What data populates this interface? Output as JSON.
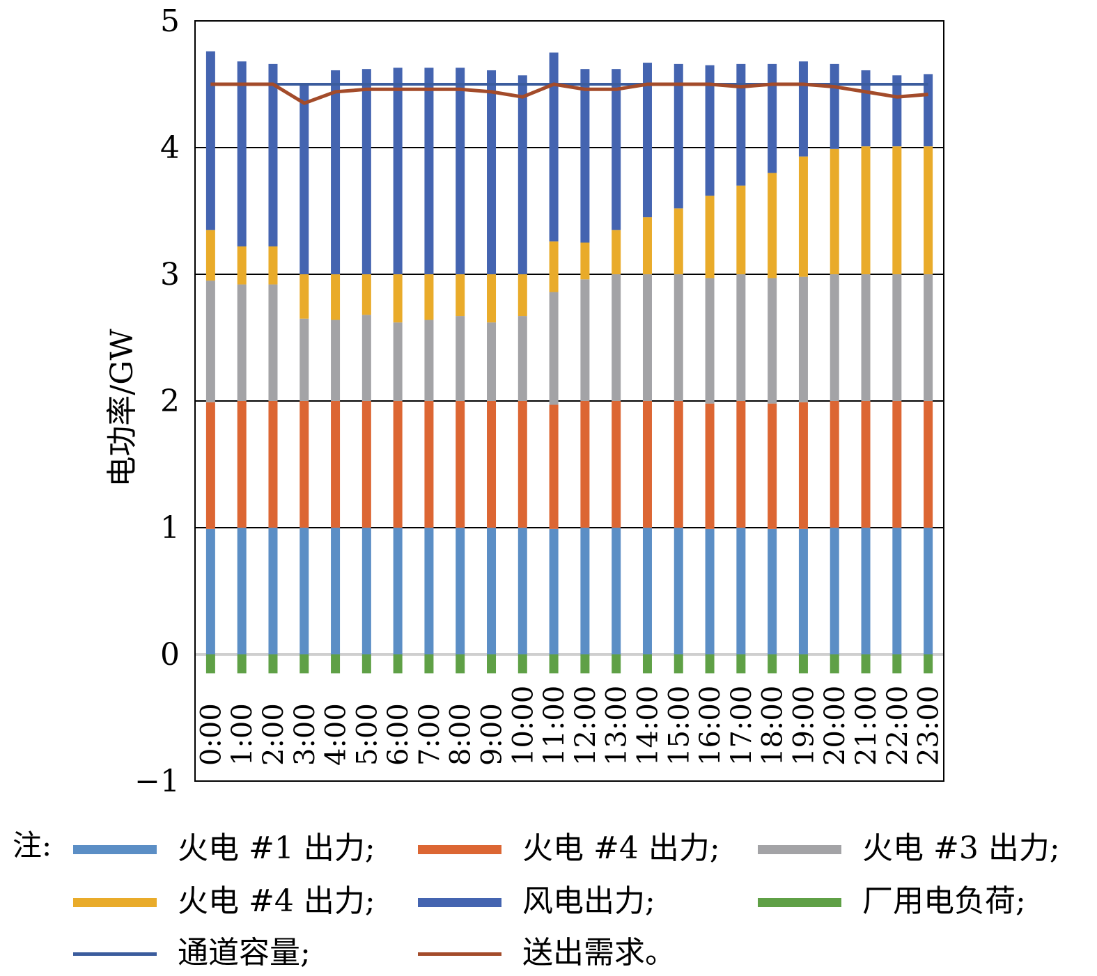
{
  "chart_data": {
    "type": "bar",
    "stacked": true,
    "ylabel": "电功率/GW",
    "xlabel": "",
    "ylim": [
      -1,
      5
    ],
    "yticks": [
      -1,
      0,
      1,
      2,
      3,
      4,
      5
    ],
    "ytick_labels": [
      "−1",
      "0",
      "1",
      "2",
      "3",
      "4",
      "5"
    ],
    "grid": true,
    "legend_position": "bottom",
    "categories": [
      "0:00",
      "1:00",
      "2:00",
      "3:00",
      "4:00",
      "5:00",
      "6:00",
      "7:00",
      "8:00",
      "9:00",
      "10:00",
      "11:00",
      "12:00",
      "13:00",
      "14:00",
      "15:00",
      "16:00",
      "17:00",
      "18:00",
      "19:00",
      "20:00",
      "21:00",
      "22:00",
      "23:00"
    ],
    "series": [
      {
        "name": "火电 #1 出力",
        "color": "#5b8ec5",
        "values": [
          0.99,
          1,
          1,
          1,
          1,
          1,
          1,
          1,
          1,
          1,
          1,
          0.99,
          1,
          1,
          1,
          1,
          0.99,
          1,
          0.99,
          0.99,
          1,
          1,
          1,
          1
        ]
      },
      {
        "name": "火电 #4 出力",
        "color": "#dc6633",
        "values": [
          1.0,
          1.0,
          1.0,
          1.0,
          1.0,
          1.0,
          1.0,
          1.0,
          1.0,
          1.0,
          1.0,
          0.98,
          1.0,
          1.0,
          1.0,
          1.0,
          0.99,
          1.0,
          0.99,
          1.0,
          1.0,
          1.0,
          1.0,
          1.0
        ]
      },
      {
        "name": "火电 #3 出力",
        "color": "#a3a3a6",
        "values": [
          0.96,
          0.92,
          0.92,
          0.65,
          0.64,
          0.68,
          0.62,
          0.64,
          0.67,
          0.62,
          0.67,
          0.89,
          0.96,
          1.0,
          1.0,
          1.0,
          0.99,
          1.0,
          0.99,
          0.99,
          1.0,
          1.0,
          1.0,
          1.0
        ]
      },
      {
        "name": "火电 #4 出力",
        "color": "#e9ab2a",
        "values": [
          0.4,
          0.3,
          0.3,
          0.35,
          0.36,
          0.32,
          0.38,
          0.36,
          0.33,
          0.38,
          0.33,
          0.4,
          0.29,
          0.35,
          0.45,
          0.52,
          0.65,
          0.7,
          0.83,
          0.95,
          0.99,
          1.01,
          1.01,
          1.01
        ]
      },
      {
        "name": "风电出力",
        "color": "#4464b0",
        "values": [
          1.41,
          1.46,
          1.44,
          1.5,
          1.61,
          1.62,
          1.63,
          1.63,
          1.63,
          1.61,
          1.57,
          1.49,
          1.37,
          1.27,
          1.22,
          1.14,
          1.03,
          0.96,
          0.86,
          0.75,
          0.67,
          0.6,
          0.56,
          0.57
        ]
      },
      {
        "name": "厂用电负荷",
        "color": "#5fa046",
        "values": [
          -0.15,
          -0.15,
          -0.15,
          -0.15,
          -0.15,
          -0.15,
          -0.15,
          -0.15,
          -0.15,
          -0.15,
          -0.15,
          -0.15,
          -0.15,
          -0.15,
          -0.15,
          -0.15,
          -0.15,
          -0.15,
          -0.15,
          -0.15,
          -0.15,
          -0.15,
          -0.15,
          -0.15
        ]
      }
    ],
    "lines": [
      {
        "name": "通道容量",
        "color": "#3b5c9d",
        "values": [
          4.5,
          4.5,
          4.5,
          4.5,
          4.5,
          4.5,
          4.5,
          4.5,
          4.5,
          4.5,
          4.5,
          4.5,
          4.5,
          4.5,
          4.5,
          4.5,
          4.5,
          4.5,
          4.5,
          4.5,
          4.5,
          4.5,
          4.5,
          4.5
        ]
      },
      {
        "name": "送出需求",
        "color": "#a34b2a",
        "values": [
          4.5,
          4.5,
          4.5,
          4.35,
          4.44,
          4.46,
          4.46,
          4.46,
          4.46,
          4.44,
          4.4,
          4.5,
          4.46,
          4.46,
          4.5,
          4.5,
          4.5,
          4.48,
          4.5,
          4.5,
          4.48,
          4.44,
          4.4,
          4.42
        ]
      }
    ]
  },
  "legend": {
    "note_label": "注:",
    "items": [
      {
        "label": "火电 #1 出力;",
        "color": "#5b8ec5",
        "kind": "bar"
      },
      {
        "label": "火电 #4 出力;",
        "color": "#dc6633",
        "kind": "bar"
      },
      {
        "label": "火电 #3 出力;",
        "color": "#a3a3a6",
        "kind": "bar"
      },
      {
        "label": "火电 #4 出力;",
        "color": "#e9ab2a",
        "kind": "bar"
      },
      {
        "label": "风电出力;",
        "color": "#4464b0",
        "kind": "bar"
      },
      {
        "label": "厂用电负荷;",
        "color": "#5fa046",
        "kind": "bar"
      },
      {
        "label": "通道容量;",
        "color": "#3b5c9d",
        "kind": "line"
      },
      {
        "label": "送出需求。",
        "color": "#a34b2a",
        "kind": "line"
      }
    ]
  }
}
